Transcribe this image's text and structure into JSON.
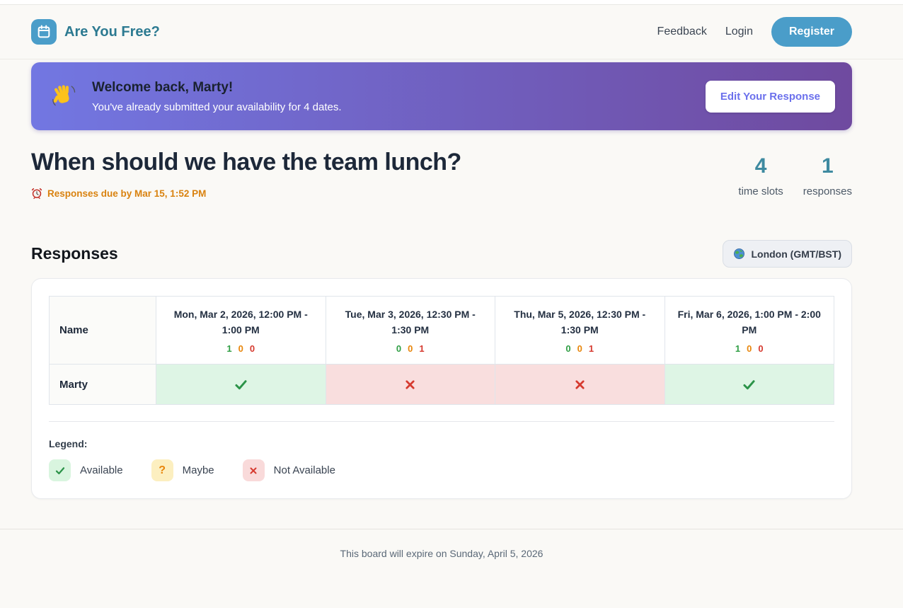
{
  "brand": {
    "name": "Are You Free?"
  },
  "nav": {
    "feedback": "Feedback",
    "login": "Login",
    "register": "Register"
  },
  "banner": {
    "icon": "wave-icon",
    "title": "Welcome back, Marty!",
    "subtitle": "You've already submitted your availability for 4 dates.",
    "edit_button": "Edit Your Response"
  },
  "event": {
    "title": "When should we have the team lunch?",
    "due_icon": "alarm-clock-icon",
    "due_text": "Responses due by Mar 15, 1:52 PM",
    "stats": [
      {
        "value": "4",
        "label": "time slots"
      },
      {
        "value": "1",
        "label": "responses"
      }
    ]
  },
  "responses": {
    "heading": "Responses",
    "timezone": {
      "icon": "globe-icon",
      "label": "London (GMT/BST)"
    },
    "table": {
      "name_header": "Name",
      "slots": [
        {
          "label": "Mon, Mar 2, 2026, 12:00 PM - 1:00 PM",
          "counts": {
            "available": 1,
            "maybe": 0,
            "unavailable": 0
          }
        },
        {
          "label": "Tue, Mar 3, 2026, 12:30 PM - 1:30 PM",
          "counts": {
            "available": 0,
            "maybe": 0,
            "unavailable": 1
          }
        },
        {
          "label": "Thu, Mar 5, 2026, 12:30 PM - 1:30 PM",
          "counts": {
            "available": 0,
            "maybe": 0,
            "unavailable": 1
          }
        },
        {
          "label": "Fri, Mar 6, 2026, 1:00 PM - 2:00 PM",
          "counts": {
            "available": 1,
            "maybe": 0,
            "unavailable": 0
          }
        }
      ],
      "rows": [
        {
          "name": "Marty",
          "answers": [
            "available",
            "unavailable",
            "unavailable",
            "available"
          ]
        }
      ]
    },
    "legend": {
      "title": "Legend:",
      "items": [
        {
          "key": "available",
          "icon": "check-icon",
          "label": "Available"
        },
        {
          "key": "maybe",
          "icon": "question-icon",
          "label": "Maybe"
        },
        {
          "key": "unavailable",
          "icon": "x-icon",
          "label": "Not Available"
        }
      ]
    }
  },
  "footer": {
    "text": "This board will expire on Sunday, April 5, 2026"
  },
  "colors": {
    "brand_blue": "#4a9dc9",
    "brand_teal": "#2c7a91",
    "banner_gradient_start": "#7277e2",
    "banner_gradient_end": "#6f4a9f",
    "edit_button_text": "#6b70ec",
    "due_orange": "#d9820f",
    "stat_teal": "#3e8aa0",
    "available_green": "#2f9e44",
    "maybe_amber": "#e8860b",
    "unavailable_red": "#d63a2f",
    "available_cell_bg": "#def5e5",
    "unavailable_cell_bg": "#f9dede",
    "page_bg": "#faf9f6"
  }
}
